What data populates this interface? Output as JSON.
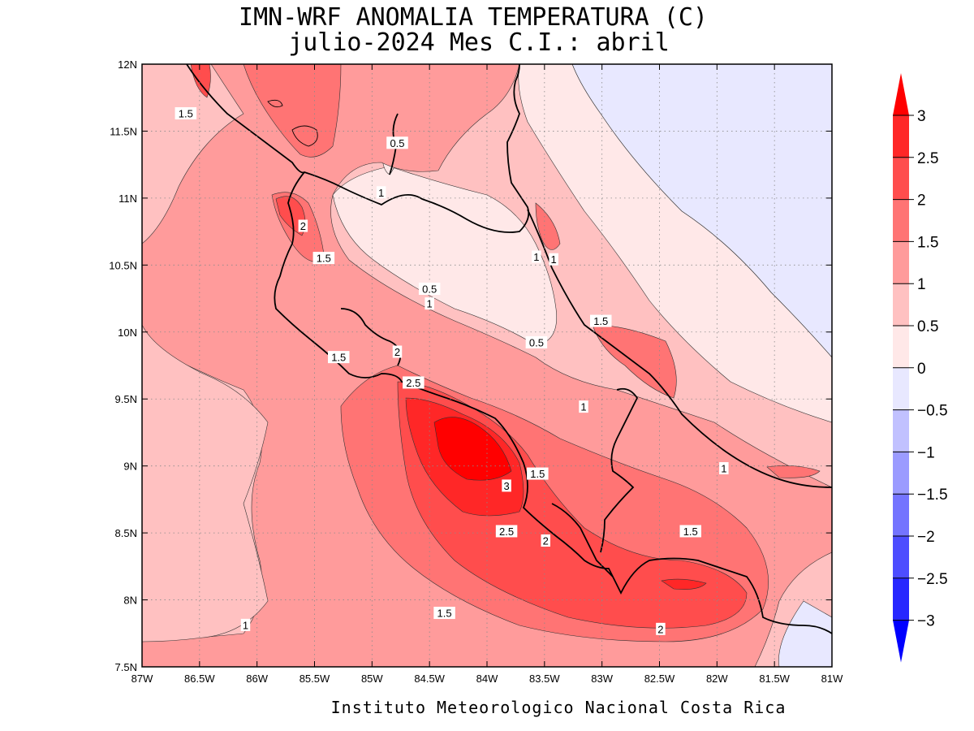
{
  "header": {
    "title_line1": "IMN-WRF  ANOMALIA TEMPERATURA (C)",
    "title_line2": "julio-2024 Mes C.I.: abril"
  },
  "footer": {
    "credit": "Instituto Meteorologico Nacional Costa Rica"
  },
  "map": {
    "lon_min": -87,
    "lon_max": -81,
    "lat_min": 7.5,
    "lat_max": 12,
    "grid": "dotted",
    "x_ticks": [
      {
        "value": -87,
        "label": "87W"
      },
      {
        "value": -86.5,
        "label": "86.5W"
      },
      {
        "value": -86,
        "label": "86W"
      },
      {
        "value": -85.5,
        "label": "85.5W"
      },
      {
        "value": -85,
        "label": "85W"
      },
      {
        "value": -84.5,
        "label": "84.5W"
      },
      {
        "value": -84,
        "label": "84W"
      },
      {
        "value": -83.5,
        "label": "83.5W"
      },
      {
        "value": -83,
        "label": "83W"
      },
      {
        "value": -82.5,
        "label": "82.5W"
      },
      {
        "value": -82,
        "label": "82W"
      },
      {
        "value": -81.5,
        "label": "81.5W"
      },
      {
        "value": -81,
        "label": "81W"
      }
    ],
    "y_ticks": [
      {
        "value": 12,
        "label": "12N"
      },
      {
        "value": 11.5,
        "label": "11.5N"
      },
      {
        "value": 11,
        "label": "11N"
      },
      {
        "value": 10.5,
        "label": "10.5N"
      },
      {
        "value": 10,
        "label": "10N"
      },
      {
        "value": 9.5,
        "label": "9.5N"
      },
      {
        "value": 9,
        "label": "9N"
      },
      {
        "value": 8.5,
        "label": "8.5N"
      },
      {
        "value": 8,
        "label": "8N"
      },
      {
        "value": 7.5,
        "label": "7.5N"
      }
    ],
    "contour_labels": [
      {
        "text": "1.5",
        "lon": -86.62,
        "lat": 11.63
      },
      {
        "text": "0.5",
        "lon": -84.78,
        "lat": 11.41
      },
      {
        "text": "1",
        "lon": -84.92,
        "lat": 11.04
      },
      {
        "text": "2",
        "lon": -85.6,
        "lat": 10.79
      },
      {
        "text": "1.5",
        "lon": -85.42,
        "lat": 10.55
      },
      {
        "text": "1",
        "lon": -83.57,
        "lat": 10.56
      },
      {
        "text": "1",
        "lon": -83.42,
        "lat": 10.54
      },
      {
        "text": "0.5",
        "lon": -84.5,
        "lat": 10.32
      },
      {
        "text": "1",
        "lon": -84.5,
        "lat": 10.21
      },
      {
        "text": "1.5",
        "lon": -83.01,
        "lat": 10.08
      },
      {
        "text": "0.5",
        "lon": -83.57,
        "lat": 9.92
      },
      {
        "text": "1.5",
        "lon": -85.29,
        "lat": 9.81
      },
      {
        "text": "2",
        "lon": -84.78,
        "lat": 9.85
      },
      {
        "text": "2.5",
        "lon": -84.64,
        "lat": 9.62
      },
      {
        "text": "1",
        "lon": -83.16,
        "lat": 9.44
      },
      {
        "text": "1.5",
        "lon": -83.56,
        "lat": 8.94
      },
      {
        "text": "1",
        "lon": -81.94,
        "lat": 8.98
      },
      {
        "text": "3",
        "lon": -83.83,
        "lat": 8.85
      },
      {
        "text": "2.5",
        "lon": -83.83,
        "lat": 8.51
      },
      {
        "text": "2",
        "lon": -83.49,
        "lat": 8.44
      },
      {
        "text": "1.5",
        "lon": -82.23,
        "lat": 8.51
      },
      {
        "text": "1.5",
        "lon": -84.37,
        "lat": 7.9
      },
      {
        "text": "1",
        "lon": -86.1,
        "lat": 7.81
      },
      {
        "text": "2",
        "lon": -82.49,
        "lat": 7.78
      }
    ]
  },
  "colorbar": {
    "levels": [
      {
        "value": -3,
        "label": "−3",
        "color": "#0000ff"
      },
      {
        "value": -2.5,
        "label": "−2.5",
        "color": "#2727ff"
      },
      {
        "value": -2,
        "label": "−2",
        "color": "#4d4dff"
      },
      {
        "value": -1.5,
        "label": "−1.5",
        "color": "#7474ff"
      },
      {
        "value": -1,
        "label": "−1",
        "color": "#9b9bff"
      },
      {
        "value": -0.5,
        "label": "−0.5",
        "color": "#c1c1ff"
      },
      {
        "value": 0,
        "label": "0",
        "color": "#e8e8ff"
      },
      {
        "value": 0.5,
        "label": "0.5",
        "color": "#ffe8e8"
      },
      {
        "value": 1,
        "label": "1",
        "color": "#ffc1c1"
      },
      {
        "value": 1.5,
        "label": "1.5",
        "color": "#ff9b9b"
      },
      {
        "value": 2,
        "label": "2",
        "color": "#ff7474"
      },
      {
        "value": 2.5,
        "label": "2.5",
        "color": "#ff4d4d"
      },
      {
        "value": 3,
        "label": "3",
        "color": "#ff2727"
      }
    ],
    "under_color": "#0000ff",
    "over_color": "#ff0000"
  }
}
